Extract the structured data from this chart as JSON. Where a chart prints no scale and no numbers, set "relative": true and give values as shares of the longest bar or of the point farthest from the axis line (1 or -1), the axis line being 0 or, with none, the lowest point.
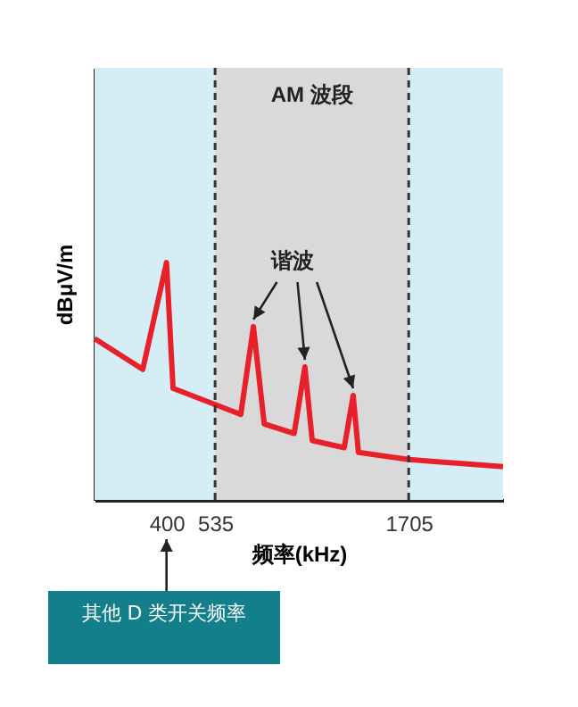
{
  "chart_data": {
    "type": "line",
    "relative": true,
    "xlabel": "频率(kHz)",
    "ylabel": "dBμV/m",
    "log": "x",
    "xlim": [
      260,
      3000
    ],
    "xticks": [
      400,
      535,
      1705
    ],
    "x": [
      260,
      347,
      400,
      416,
      624,
      673,
      718,
      859,
      916,
      957,
      1159,
      1223,
      1262,
      1705,
      3000
    ],
    "series": [
      {
        "color": "#e8202a",
        "values": [
          0.68,
          0.55,
          1,
          0.47,
          0.36,
          0.73,
          0.32,
          0.28,
          0.56,
          0.25,
          0.22,
          0.44,
          0.2,
          0.17,
          0.14
        ]
      }
    ],
    "bands": [
      {
        "axis": "x",
        "from": 260,
        "to": 535,
        "color": "#d5eef6"
      },
      {
        "axis": "x",
        "from": 535,
        "to": 1705,
        "color": "#d9d9d9",
        "label": "AM 波段"
      },
      {
        "axis": "x",
        "from": 1705,
        "to": 3000,
        "color": "#d5eef6"
      }
    ],
    "ref_lines": [
      {
        "axis": "x",
        "value": 535,
        "line_style": "dashed",
        "color": "#333333"
      },
      {
        "axis": "x",
        "value": 1705,
        "line_style": "dashed",
        "color": "#333333"
      }
    ],
    "annotations": [
      "谐波",
      "其他 D 类开关频率"
    ],
    "marker": "none",
    "line_style": "solid"
  }
}
